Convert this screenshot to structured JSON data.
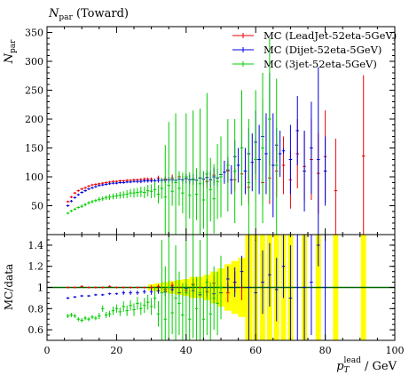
{
  "chart_data": [
    {
      "type": "scatter",
      "title": "N_par (Toward)",
      "ylabel": "N_par",
      "xlim": [
        0,
        100
      ],
      "ylim": [
        0,
        360
      ],
      "yticks": [
        0,
        50,
        100,
        150,
        200,
        250,
        300,
        350
      ],
      "legend": {
        "placement": "top-right"
      },
      "series": [
        {
          "name": "MC (LeadJet-52eta-5GeV)",
          "color": "#ee0000",
          "x": [
            6,
            7,
            8,
            9,
            10,
            11,
            12,
            13,
            14,
            15,
            16,
            17,
            18,
            19,
            20,
            21,
            22,
            23,
            24,
            25,
            26,
            27,
            28,
            29,
            30,
            32,
            34,
            36,
            38,
            40,
            42,
            44,
            46,
            48,
            50,
            52,
            54,
            56,
            58,
            60,
            62,
            64,
            66,
            68,
            70,
            72,
            74,
            76,
            78,
            80,
            83,
            91
          ],
          "y": [
            57,
            65,
            72,
            76,
            79,
            81,
            84,
            86,
            87,
            88,
            89,
            90,
            91,
            92,
            92,
            93,
            93,
            94,
            94,
            95,
            95,
            95,
            96,
            96,
            96,
            98,
            96,
            98,
            100,
            97,
            95,
            98,
            92,
            103,
            100,
            110,
            95,
            105,
            82,
            130,
            90,
            98,
            110,
            120,
            95,
            140,
            118,
            130,
            106,
            135,
            76,
            136
          ],
          "err": [
            2,
            2,
            2,
            2,
            2,
            2,
            2,
            2,
            2,
            2,
            2,
            2,
            2,
            2,
            2,
            2,
            2,
            2,
            2,
            2,
            2,
            3,
            3,
            3,
            3,
            4,
            5,
            6,
            7,
            8,
            9,
            10,
            12,
            14,
            16,
            18,
            20,
            25,
            30,
            35,
            40,
            45,
            45,
            50,
            50,
            60,
            60,
            70,
            70,
            80,
            90,
            140
          ]
        },
        {
          "name": "MC (Dijet-52eta-5GeV)",
          "color": "#0000dd",
          "x": [
            6,
            7,
            8,
            9,
            10,
            11,
            12,
            13,
            14,
            15,
            16,
            17,
            18,
            19,
            20,
            21,
            22,
            23,
            24,
            25,
            26,
            27,
            28,
            29,
            30,
            31,
            32,
            33,
            34,
            35,
            36,
            37,
            38,
            39,
            40,
            41,
            42,
            43,
            44,
            45,
            46,
            47,
            48,
            49,
            50,
            51,
            52,
            53,
            54,
            55,
            56,
            57,
            58,
            59,
            60,
            61,
            62,
            63,
            64,
            65,
            66,
            67,
            68,
            70,
            72,
            74,
            76,
            78,
            80
          ],
          "y": [
            50,
            58,
            64,
            69,
            73,
            76,
            79,
            81,
            83,
            85,
            86,
            87,
            88,
            89,
            89,
            90,
            90,
            91,
            91,
            92,
            92,
            92,
            93,
            93,
            93,
            93,
            94,
            94,
            94,
            95,
            95,
            94,
            96,
            95,
            97,
            95,
            96,
            94,
            98,
            96,
            99,
            95,
            100,
            98,
            104,
            108,
            112,
            95,
            135,
            120,
            150,
            110,
            140,
            125,
            160,
            130,
            170,
            140,
            200,
            120,
            155,
            140,
            145,
            130,
            180,
            110,
            150,
            130,
            110
          ],
          "err": [
            2,
            2,
            2,
            2,
            2,
            2,
            2,
            2,
            2,
            2,
            2,
            2,
            2,
            2,
            2,
            2,
            2,
            2,
            2,
            2,
            3,
            3,
            3,
            3,
            3,
            4,
            4,
            4,
            5,
            5,
            6,
            6,
            7,
            7,
            8,
            8,
            9,
            10,
            10,
            12,
            12,
            14,
            15,
            16,
            18,
            20,
            22,
            25,
            28,
            30,
            35,
            40,
            45,
            50,
            55,
            60,
            65,
            70,
            80,
            90,
            30,
            40,
            5,
            60,
            60,
            70,
            80,
            160,
            60
          ]
        },
        {
          "name": "MC (3jet-52eta-5GeV)",
          "color": "#00cc00",
          "x": [
            6,
            7,
            8,
            9,
            10,
            11,
            12,
            13,
            14,
            15,
            16,
            17,
            18,
            19,
            20,
            21,
            22,
            23,
            24,
            25,
            26,
            27,
            28,
            29,
            30,
            31,
            32,
            33,
            34,
            35,
            36,
            37,
            38,
            39,
            40,
            41,
            42,
            43,
            44,
            45,
            46,
            47,
            48,
            49,
            50,
            52,
            54,
            56,
            58,
            60,
            62,
            64,
            66
          ],
          "y": [
            37,
            41,
            44,
            47,
            49,
            52,
            55,
            57,
            59,
            61,
            62,
            64,
            65,
            66,
            67,
            68,
            69,
            70,
            72,
            72,
            73,
            74,
            73,
            76,
            75,
            78,
            70,
            80,
            65,
            85,
            75,
            90,
            80,
            72,
            100,
            68,
            95,
            70,
            88,
            60,
            105,
            78,
            62,
            92,
            100,
            120,
            110,
            150,
            90,
            130,
            150,
            200,
            120
          ],
          "err": [
            2,
            2,
            2,
            2,
            3,
            3,
            3,
            3,
            3,
            4,
            4,
            4,
            5,
            5,
            5,
            6,
            6,
            7,
            7,
            8,
            8,
            9,
            10,
            10,
            12,
            14,
            16,
            18,
            90,
            110,
            25,
            120,
            30,
            35,
            110,
            40,
            120,
            45,
            130,
            50,
            140,
            55,
            60,
            65,
            70,
            80,
            90,
            100,
            110,
            120,
            130,
            140,
            150
          ]
        }
      ]
    },
    {
      "type": "scatter",
      "ylabel": "MC/data",
      "xlabel": "p_T^lead / GeV",
      "xlim": [
        0,
        100
      ],
      "xticks": [
        0,
        20,
        40,
        60,
        80,
        100
      ],
      "ylim": [
        0.5,
        1.5
      ],
      "yticks": [
        0.6,
        0.8,
        1,
        1.2,
        1.4
      ],
      "reference_line": {
        "y": 1,
        "color": "#006600"
      },
      "data_band": {
        "color": "#ffff00",
        "x": [
          30,
          32,
          34,
          36,
          38,
          40,
          42,
          44,
          46,
          48,
          50,
          52,
          54,
          56,
          58,
          60,
          62,
          64,
          66,
          68,
          70,
          74,
          78,
          83,
          91
        ],
        "lo": [
          0.97,
          0.96,
          0.95,
          0.94,
          0.93,
          0.92,
          0.9,
          0.9,
          0.88,
          0.85,
          0.82,
          0.78,
          0.75,
          0.72,
          0.5,
          0.5,
          0.5,
          0.5,
          0.5,
          0.5,
          0.5,
          0.5,
          0.5,
          0.5,
          0.5
        ],
        "hi": [
          1.03,
          1.04,
          1.05,
          1.06,
          1.07,
          1.08,
          1.1,
          1.1,
          1.12,
          1.15,
          1.18,
          1.22,
          1.25,
          1.28,
          1.5,
          1.5,
          1.5,
          1.5,
          1.5,
          1.5,
          1.5,
          1.5,
          1.5,
          1.5,
          1.5
        ],
        "width": [
          2,
          2,
          2,
          2,
          2,
          2,
          2,
          2,
          2,
          2,
          2,
          2,
          2,
          2,
          2,
          1.5,
          1.5,
          1.5,
          1.5,
          1.5,
          1.5,
          1.5,
          1.5,
          1.5,
          1.5
        ]
      },
      "series": [
        {
          "name": "MC (LeadJet-52eta-5GeV)",
          "color": "#ee0000",
          "x": [
            6,
            8,
            10,
            12,
            14,
            16,
            18,
            20,
            22,
            24,
            26,
            28,
            30,
            32,
            34,
            36,
            38,
            40,
            42,
            44,
            46,
            48,
            50,
            52,
            54,
            56
          ],
          "y": [
            1.0,
            1.0,
            1.01,
            1.0,
            1.0,
            1.0,
            1.01,
            1.0,
            1.0,
            1.0,
            1.0,
            1.0,
            1.0,
            1.01,
            0.98,
            1.02,
            1.0,
            0.97,
            1.03,
            1.0,
            0.96,
            1.04,
            1.0,
            0.95,
            1.05,
            1.0
          ],
          "err": [
            0.01,
            0.01,
            0.01,
            0.01,
            0.01,
            0.01,
            0.01,
            0.01,
            0.01,
            0.01,
            0.01,
            0.01,
            0.02,
            0.02,
            0.03,
            0.03,
            0.04,
            0.04,
            0.05,
            0.05,
            0.06,
            0.07,
            0.08,
            0.09,
            0.1,
            0.12
          ]
        },
        {
          "name": "MC (Dijet-52eta-5GeV)",
          "color": "#0000dd",
          "x": [
            6,
            8,
            10,
            12,
            14,
            16,
            18,
            20,
            22,
            24,
            26,
            28,
            30,
            32,
            34,
            36,
            38,
            40,
            42,
            44,
            46,
            48,
            50,
            52,
            54,
            56,
            58,
            60,
            62,
            64,
            66,
            68,
            70,
            72,
            74,
            76,
            78,
            80
          ],
          "y": [
            0.9,
            0.91,
            0.92,
            0.92,
            0.93,
            0.93,
            0.94,
            0.94,
            0.95,
            0.95,
            0.95,
            0.96,
            0.96,
            0.97,
            0.96,
            0.98,
            0.95,
            0.99,
            0.97,
            0.93,
            1.0,
            0.94,
            0.95,
            1.08,
            1.05,
            1.15,
            1.0,
            0.95,
            1.05,
            1.12,
            0.98,
            1.2,
            0.9,
            1.0,
            1.0,
            1.05,
            1.4,
            1.0
          ],
          "err": [
            0.01,
            0.01,
            0.01,
            0.01,
            0.01,
            0.01,
            0.01,
            0.01,
            0.02,
            0.02,
            0.02,
            0.02,
            0.03,
            0.03,
            0.04,
            0.04,
            0.05,
            0.05,
            0.06,
            0.07,
            0.08,
            0.09,
            0.1,
            0.12,
            0.14,
            0.15,
            0.5,
            0.5,
            0.3,
            0.3,
            0.3,
            0.3,
            0.5,
            0.5,
            0.5,
            0.5,
            0.2,
            0.5
          ]
        },
        {
          "name": "MC (3jet-52eta-5GeV)",
          "color": "#00cc00",
          "x": [
            6,
            7,
            8,
            9,
            10,
            11,
            12,
            13,
            14,
            15,
            16,
            17,
            18,
            19,
            20,
            21,
            22,
            23,
            24,
            25,
            26,
            27,
            28,
            29,
            30,
            31,
            32,
            33,
            34,
            35,
            36,
            37,
            38,
            39,
            40,
            41,
            42,
            43,
            44,
            45,
            46,
            47,
            48,
            49,
            50
          ],
          "y": [
            0.73,
            0.74,
            0.73,
            0.7,
            0.69,
            0.71,
            0.7,
            0.72,
            0.71,
            0.73,
            0.8,
            0.74,
            0.75,
            0.78,
            0.8,
            0.77,
            0.82,
            0.78,
            0.83,
            0.79,
            0.85,
            0.8,
            0.83,
            0.86,
            0.82,
            0.9,
            0.75,
            0.95,
            0.7,
            1.0,
            0.76,
            0.9,
            0.85,
            0.74,
            0.95,
            0.7,
            1.02,
            0.8,
            0.95,
            0.7,
            1.05,
            0.75,
            0.9,
            0.85,
            1.0
          ],
          "err": [
            0.02,
            0.02,
            0.02,
            0.02,
            0.02,
            0.02,
            0.02,
            0.02,
            0.02,
            0.03,
            0.03,
            0.03,
            0.03,
            0.04,
            0.04,
            0.04,
            0.05,
            0.05,
            0.05,
            0.06,
            0.06,
            0.06,
            0.07,
            0.07,
            0.08,
            0.1,
            0.12,
            0.5,
            0.5,
            0.5,
            0.2,
            0.5,
            0.3,
            0.3,
            0.5,
            0.3,
            0.5,
            0.3,
            0.5,
            0.3,
            0.5,
            0.3,
            0.3,
            0.3,
            0.3
          ]
        }
      ]
    }
  ],
  "labels": {
    "title_main": "N",
    "title_sub": "par",
    "title_rest": " (Toward)",
    "ylabel_main": "N",
    "ylabel_sub": "par",
    "ratio_ylabel": "MC/data",
    "xlabel_p": "p",
    "xlabel_sub": "T",
    "xlabel_sup": "lead",
    "xlabel_unit": " / GeV"
  }
}
